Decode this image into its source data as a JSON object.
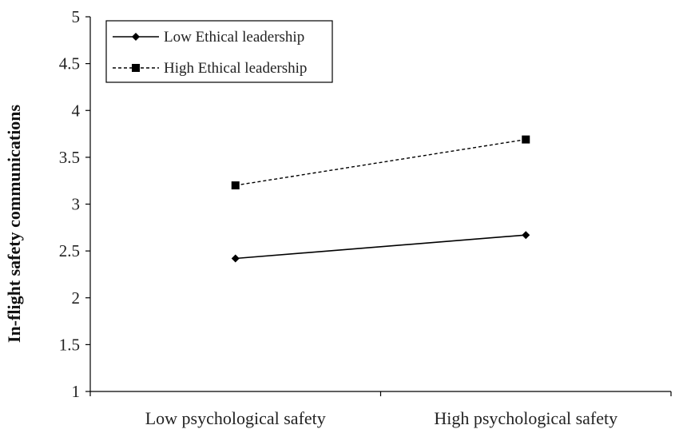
{
  "chart_data": {
    "type": "line",
    "title": "",
    "xlabel": "",
    "ylabel": "In-flight safety communications",
    "categories": [
      "Low psychological safety",
      "High psychological safety"
    ],
    "ylim": [
      1,
      5
    ],
    "yticks": [
      "1",
      "1.5",
      "2",
      "2.5",
      "3",
      "3.5",
      "4",
      "4.5",
      "5"
    ],
    "grid": false,
    "legend_position": "top-left",
    "series": [
      {
        "name": "Low Ethical leadership",
        "values": [
          2.42,
          2.67
        ],
        "line_style": "solid",
        "marker": "diamond",
        "color": "#000000"
      },
      {
        "name": "High Ethical leadership",
        "values": [
          3.2,
          3.69
        ],
        "line_style": "dashed",
        "marker": "square",
        "color": "#000000"
      }
    ]
  }
}
